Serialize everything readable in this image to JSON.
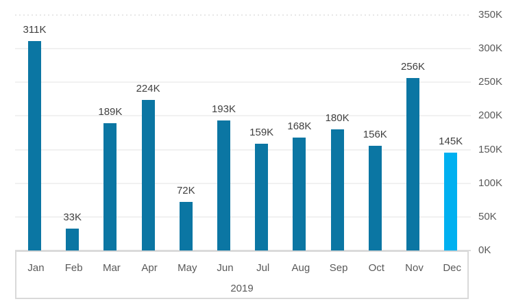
{
  "chart_data": {
    "type": "bar",
    "title": "",
    "xlabel": "2019",
    "ylabel": "",
    "categories": [
      "Jan",
      "Feb",
      "Mar",
      "Apr",
      "May",
      "Jun",
      "Jul",
      "Aug",
      "Sep",
      "Oct",
      "Nov",
      "Dec"
    ],
    "values": [
      311,
      33,
      189,
      224,
      72,
      193,
      159,
      168,
      180,
      156,
      256,
      145
    ],
    "data_labels": [
      "311K",
      "33K",
      "189K",
      "224K",
      "72K",
      "193K",
      "159K",
      "168K",
      "180K",
      "156K",
      "256K",
      "145K"
    ],
    "x_group_label": "2019",
    "y_axis_side": "right",
    "y_tick_labels": [
      "0K",
      "50K",
      "100K",
      "150K",
      "200K",
      "250K",
      "300K",
      "350K"
    ],
    "ylim": [
      0,
      350
    ],
    "y_tick_step": 50,
    "grid": true,
    "legend_position": "none",
    "colors": {
      "bar_default": "#0b76a3",
      "bar_highlight": "#00b0f0",
      "gridline": "#f1f1f1",
      "gridline_top_dotted": "#e7e7e7",
      "zero_line": "#dcdcdc",
      "data_label": "#404040",
      "tick_label": "#595959",
      "axis_box_border": "#d9d9d9"
    },
    "highlight_index": 11
  }
}
